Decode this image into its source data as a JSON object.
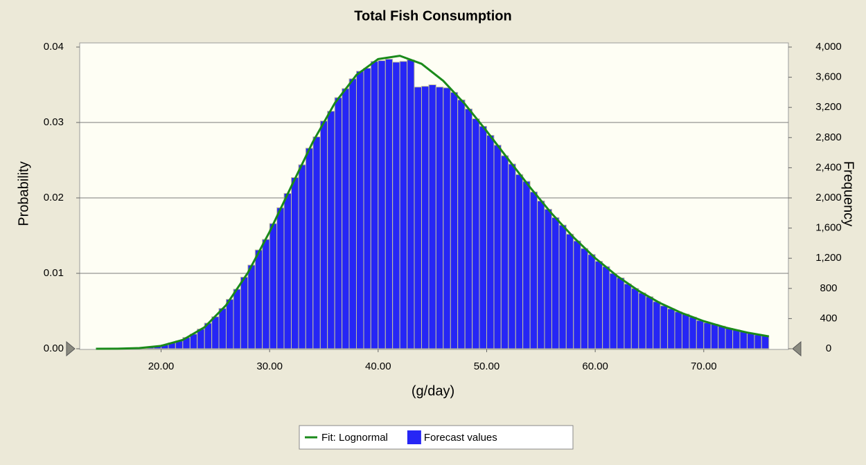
{
  "chart_data": {
    "type": "histogram",
    "title": "Total Fish Consumption",
    "xlabel": "(g/day)",
    "ylabel": "Probability",
    "y2label": "Frequency",
    "xlim": [
      12.5,
      77.8
    ],
    "ylim": [
      0,
      0.04
    ],
    "y2lim": [
      0,
      4000
    ],
    "xticks": [
      {
        "value": 20,
        "label": "20.00"
      },
      {
        "value": 30,
        "label": "30.00"
      },
      {
        "value": 40,
        "label": "40.00"
      },
      {
        "value": 50,
        "label": "50.00"
      },
      {
        "value": 60,
        "label": "60.00"
      },
      {
        "value": 70,
        "label": "70.00"
      }
    ],
    "yticks": [
      {
        "value": 0,
        "label": "0.00"
      },
      0.01,
      0.02,
      0.03,
      0.04
    ],
    "y2ticks": [
      0,
      400,
      800,
      {
        "value": 1200,
        "label": "1,200"
      },
      {
        "value": 1600,
        "label": "1,600"
      },
      {
        "value": 2000,
        "label": "2,000"
      },
      {
        "value": 2400,
        "label": "2,400"
      },
      {
        "value": 2800,
        "label": "2,800"
      },
      {
        "value": 3200,
        "label": "3,200"
      },
      {
        "value": 3600,
        "label": "3,600"
      },
      {
        "value": 4000,
        "label": "4,000"
      }
    ],
    "grid": true,
    "legend": "bottom",
    "bins": [
      14,
      14.67,
      15.33,
      16,
      16.67,
      17.33,
      18,
      18.67,
      19.33,
      20,
      20.67,
      21.33,
      22,
      22.67,
      23.33,
      24,
      24.67,
      25.33,
      26,
      26.67,
      27.33,
      28,
      28.67,
      29.33,
      30,
      30.67,
      31.33,
      32,
      32.67,
      33.33,
      34,
      34.67,
      35.33,
      36,
      36.67,
      37.33,
      38,
      38.67,
      39.33,
      40,
      40.67,
      41.33,
      42,
      42.67,
      43.33,
      44,
      44.67,
      45.33,
      46,
      46.67,
      47.33,
      48,
      48.67,
      49.33,
      50,
      50.67,
      51.33,
      52,
      52.67,
      53.33,
      54,
      54.67,
      55.33,
      56,
      56.67,
      57.33,
      58,
      58.67,
      59.33,
      60,
      60.67,
      61.33,
      62,
      62.67,
      63.33,
      64,
      64.67,
      65.33,
      66,
      66.67,
      67.33,
      68,
      68.67,
      69.33,
      70,
      70.67,
      71.33,
      72,
      72.67,
      73.33,
      74,
      74.67,
      75.33,
      76
    ],
    "series": [
      {
        "name": "Fit: Lognormal",
        "type": "line",
        "color": "#1a8a1a",
        "x": [
          14,
          16,
          18,
          20,
          22,
          24,
          26,
          28,
          30,
          32,
          34,
          36,
          38,
          40,
          42,
          44,
          46,
          48,
          50,
          52,
          54,
          56,
          58,
          60,
          62,
          64,
          66,
          68,
          70,
          72,
          74,
          76
        ],
        "values": [
          1.4e-06,
          1.4e-05,
          9e-05,
          0.00038,
          0.00117,
          0.00285,
          0.00579,
          0.01008,
          0.01551,
          0.02153,
          0.02746,
          0.03255,
          0.0363,
          0.03841,
          0.03884,
          0.03778,
          0.03552,
          0.03243,
          0.02885,
          0.0251,
          0.02139,
          0.01791,
          0.01478,
          0.01202,
          0.00966,
          0.00768,
          0.00604,
          0.00472,
          0.00366,
          0.00281,
          0.00215,
          0.00164
        ]
      },
      {
        "name": "Forecast values",
        "type": "histogram",
        "axis": "y2",
        "color": "#2626f5",
        "edgecolor": "#c4c49a",
        "values": [
          0,
          1,
          1,
          3,
          5,
          8,
          14,
          24,
          33,
          51,
          78,
          104,
          150,
          195,
          262,
          340,
          425,
          535,
          655,
          790,
          950,
          1110,
          1310,
          1450,
          1660,
          1870,
          2060,
          2270,
          2440,
          2660,
          2810,
          3020,
          3150,
          3330,
          3450,
          3580,
          3680,
          3720,
          3810,
          3820,
          3840,
          3800,
          3810,
          3830,
          3470,
          3480,
          3500,
          3470,
          3460,
          3400,
          3300,
          3180,
          3050,
          2950,
          2830,
          2700,
          2560,
          2450,
          2310,
          2220,
          2080,
          1960,
          1850,
          1740,
          1640,
          1520,
          1430,
          1330,
          1250,
          1160,
          1090,
          1000,
          940,
          860,
          800,
          740,
          690,
          625,
          570,
          530,
          490,
          460,
          420,
          375,
          345,
          325,
          300,
          270,
          250,
          225,
          205,
          185,
          170
        ]
      }
    ]
  }
}
